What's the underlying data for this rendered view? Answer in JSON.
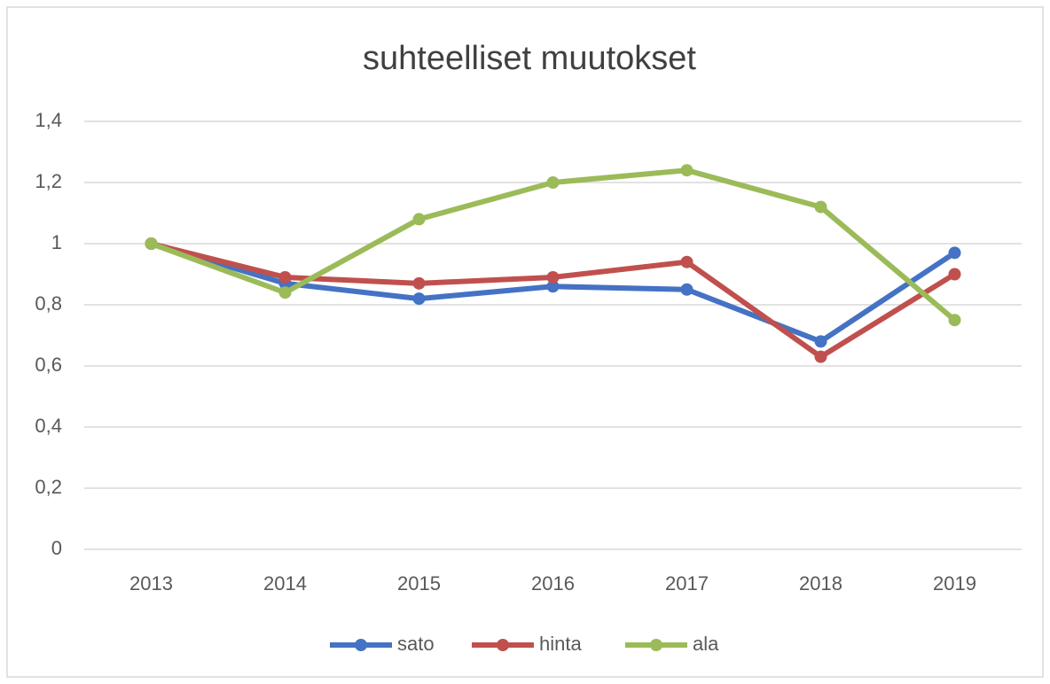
{
  "chart_data": {
    "type": "line",
    "title": "suhteelliset muutokset",
    "categories": [
      "2013",
      "2014",
      "2015",
      "2016",
      "2017",
      "2018",
      "2019"
    ],
    "series": [
      {
        "name": "sato",
        "color": "#4472c4",
        "values": [
          1.0,
          0.87,
          0.82,
          0.86,
          0.85,
          0.68,
          0.97
        ]
      },
      {
        "name": "hinta",
        "color": "#c0504d",
        "values": [
          1.0,
          0.89,
          0.87,
          0.89,
          0.94,
          0.63,
          0.9
        ]
      },
      {
        "name": "ala",
        "color": "#9bbb59",
        "values": [
          1.0,
          0.84,
          1.08,
          1.2,
          1.24,
          1.12,
          0.75
        ]
      }
    ],
    "ylim": [
      0,
      1.4
    ],
    "yticks": [
      0,
      {
        "value": 0.2,
        "label": "0,2"
      },
      {
        "value": 0.4,
        "label": "0,4"
      },
      {
        "value": 0.6,
        "label": "0,6"
      },
      {
        "value": 0.8,
        "label": "0,8"
      },
      1,
      {
        "value": 1.2,
        "label": "1,2"
      },
      {
        "value": 1.4,
        "label": "1,4"
      }
    ],
    "grid": true,
    "legend": "bottom"
  }
}
